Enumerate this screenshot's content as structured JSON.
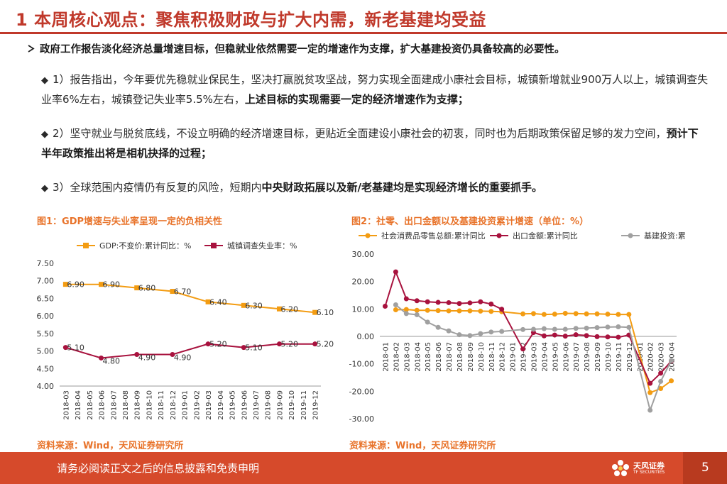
{
  "header": {
    "title": "1 本周核心观点：聚焦积极财政与扩大内需，新老基建均受益"
  },
  "lead": "政府工作报告淡化经济总量增速目标，但稳就业依然需要一定的增速作为支撑，扩大基建投资仍具备较高的必要性。",
  "points": [
    {
      "text": "1）报告指出，今年要优先稳就业保民生，坚决打赢脱贫攻坚战，努力实现全面建成小康社会目标，城镇新增就业900万人以上，城镇调查失业率6%左右，城镇登记失业率5.5%左右，",
      "bold": "上述目标的实现需要一定的经济增速作为支撑；"
    },
    {
      "text": "2）坚守就业与脱贫底线，不设立明确的经济增速目标，更贴近全面建设小康社会的初衷，同时也为后期政策保留足够的发力空间，",
      "bold": "预计下半年政策推出将是相机抉择的过程；"
    },
    {
      "text": "3）全球范围内疫情仍有反复的风险，短期内",
      "bold": "中央财政拓展以及新/老基建均是实现经济增长的重要抓手。"
    }
  ],
  "fig1": {
    "title": "图1：GDP增速与失业率呈现一定的负相关性",
    "source": "资料来源：Wind，天风证券研究所"
  },
  "fig2": {
    "title": "图2：社零、出口金额以及基建投资累计增速（单位：%）",
    "source": "资料来源：Wind，天风证券研究所"
  },
  "footer": {
    "disclaimer": "请务必阅读正文之后的信息披露和免责申明",
    "logo_name": "天风证券",
    "logo_sub": "TF SECURITIES",
    "page": "5"
  },
  "chart_data": [
    {
      "type": "line",
      "title": "图1：GDP增速与失业率呈现一定的负相关性",
      "categories": [
        "2018-03",
        "2018-04",
        "2018-05",
        "2018-06",
        "2018-07",
        "2018-08",
        "2018-09",
        "2018-10",
        "2018-11",
        "2018-12",
        "2019-01",
        "2019-02",
        "2019-03",
        "2019-04",
        "2019-05",
        "2019-06",
        "2019-07",
        "2019-08",
        "2019-09",
        "2019-10",
        "2019-11",
        "2019-12"
      ],
      "ylim": [
        4.0,
        7.5
      ],
      "yticks": [
        "4.00",
        "4.50",
        "5.00",
        "5.50",
        "6.00",
        "6.50",
        "7.00",
        "7.50"
      ],
      "series": [
        {
          "name": "GDP:不变价:累计同比：%",
          "color": "#f39c12",
          "values": [
            6.9,
            null,
            null,
            6.9,
            null,
            null,
            6.8,
            null,
            null,
            6.7,
            null,
            null,
            6.4,
            null,
            null,
            6.3,
            null,
            null,
            6.2,
            null,
            null,
            6.1
          ],
          "labels": [
            "6.90",
            "6.90",
            "6.80",
            "6.70",
            "6.40",
            "6.30",
            "6.20",
            "6.10"
          ]
        },
        {
          "name": "城镇调查失业率：%",
          "color": "#a8123e",
          "values": [
            5.1,
            null,
            null,
            4.8,
            null,
            null,
            4.9,
            null,
            null,
            4.9,
            null,
            null,
            5.2,
            null,
            null,
            5.1,
            null,
            null,
            5.2,
            null,
            null,
            5.2
          ],
          "labels": [
            "5.10",
            "4.80",
            "4.90",
            "4.90",
            "5.20",
            "5.10",
            "5.20",
            "5.20"
          ]
        }
      ]
    },
    {
      "type": "line",
      "title": "图2：社零、出口金额以及基建投资累计增速（单位：%）",
      "categories": [
        "2018-01",
        "2018-02",
        "2018-03",
        "2018-04",
        "2018-05",
        "2018-06",
        "2018-07",
        "2018-08",
        "2018-09",
        "2018-10",
        "2018-11",
        "2018-12",
        "2019-01",
        "2019-02",
        "2019-03",
        "2019-04",
        "2019-05",
        "2019-06",
        "2019-07",
        "2019-08",
        "2019-09",
        "2019-10",
        "2019-11",
        "2019-12",
        "2020-01",
        "2020-02",
        "2020-03",
        "2020-04"
      ],
      "ylim": [
        -30,
        30
      ],
      "yticks": [
        "-30.00",
        "-20.00",
        "-10.00",
        "0.00",
        "10.00",
        "20.00",
        "30.00"
      ],
      "series": [
        {
          "name": "社会消费品零售总额:累计同比",
          "color": "#f39c12",
          "values": [
            null,
            9.7,
            9.8,
            9.5,
            9.5,
            9.4,
            9.3,
            9.3,
            9.3,
            9.2,
            9.1,
            9.0,
            null,
            8.2,
            8.3,
            8.0,
            8.1,
            8.4,
            8.3,
            8.2,
            8.2,
            8.1,
            8.0,
            8.0,
            null,
            -20.5,
            -19.0,
            -16.2
          ]
        },
        {
          "name": "出口金额:累计同比",
          "color": "#a8123e",
          "values": [
            11.0,
            23.5,
            13.7,
            13.0,
            12.6,
            12.4,
            12.3,
            12.0,
            12.2,
            12.6,
            11.8,
            9.9,
            null,
            -4.6,
            1.4,
            0.2,
            0.5,
            0.1,
            0.6,
            0.3,
            -0.1,
            -0.2,
            -0.3,
            0.5,
            null,
            -17.1,
            -13.4,
            -9.0
          ]
        },
        {
          "name": "基建投资:累计同比",
          "color": "#a0a0a0",
          "values": [
            null,
            11.5,
            8.3,
            7.9,
            5.2,
            3.3,
            2.0,
            0.6,
            0.3,
            1.0,
            1.6,
            1.8,
            null,
            2.5,
            2.6,
            2.8,
            2.6,
            2.6,
            2.9,
            3.0,
            3.2,
            3.4,
            3.5,
            3.3,
            null,
            -26.9,
            -16.4,
            -8.8
          ]
        }
      ]
    }
  ]
}
